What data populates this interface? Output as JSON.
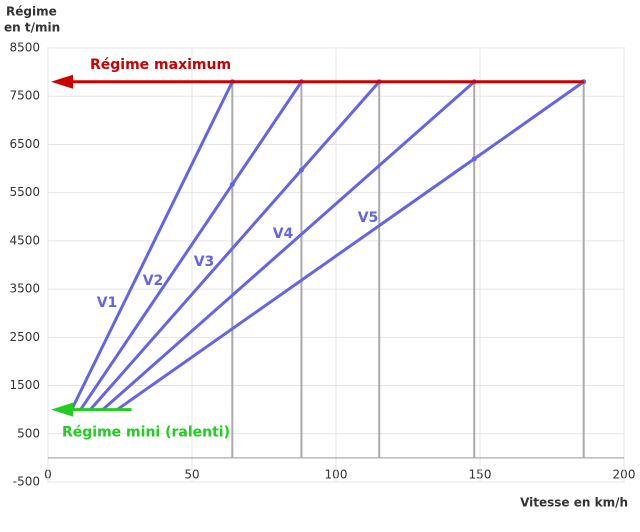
{
  "chart_data": {
    "type": "line",
    "y_label_lines": [
      "Régime",
      "en t/min"
    ],
    "x_label": "Vitesse en km/h",
    "series": [
      {
        "name": "V1",
        "color": "#6464e8",
        "x": [
          8.2,
          64
        ],
        "values": [
          1000,
          7800
        ]
      },
      {
        "name": "V2",
        "color": "#6464e8",
        "x": [
          11.3,
          64,
          88
        ],
        "values": [
          1000,
          5670,
          7800
        ]
      },
      {
        "name": "V3",
        "color": "#6464e8",
        "x": [
          14.7,
          88,
          115
        ],
        "values": [
          1000,
          5970,
          7800
        ]
      },
      {
        "name": "V4",
        "color": "#6464e8",
        "x": [
          19,
          148
        ],
        "values": [
          1000,
          7800
        ]
      },
      {
        "name": "V5",
        "color": "#6464e8",
        "x": [
          24,
          148,
          186
        ],
        "values": [
          1000,
          6200,
          7800
        ]
      }
    ],
    "reference_lines": [
      {
        "label": "Régime maximum",
        "value": 7800,
        "x_end": 186,
        "color": "#cc0000"
      },
      {
        "label": "Régime mini (ralenti)",
        "value": 1000,
        "x_end": 29,
        "color": "#22cc22"
      }
    ],
    "xlim": [
      0,
      200
    ],
    "xticks": [
      0,
      50,
      100,
      150,
      200
    ],
    "ylim": [
      -500,
      8500
    ],
    "yticks": [
      -500,
      500,
      1500,
      2500,
      3500,
      4500,
      5500,
      6500,
      7500,
      8500
    ],
    "grid": true
  }
}
